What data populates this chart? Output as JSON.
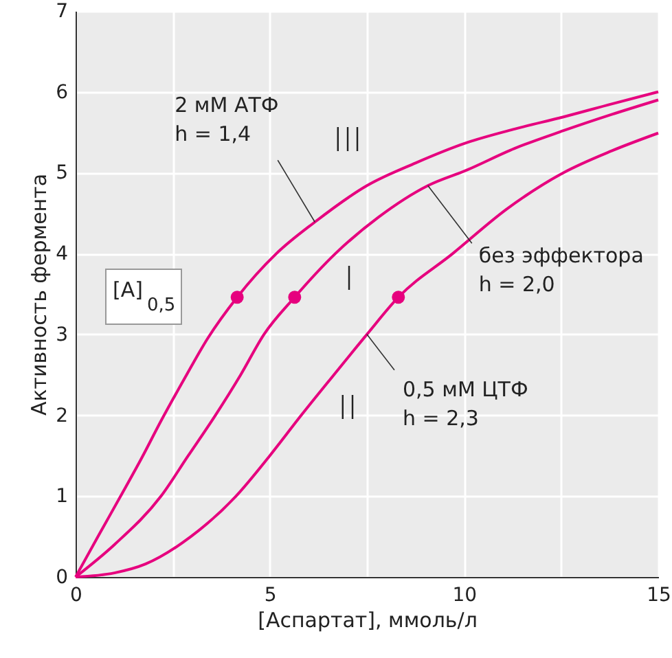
{
  "chart_data": {
    "type": "line",
    "xlabel": "[Аспартат], ммоль/л",
    "ylabel": "Активность фермента",
    "xlim": [
      0,
      15
    ],
    "ylim": [
      0,
      7
    ],
    "xticks": [
      0,
      {
        "value": 2.5,
        "label": null
      },
      5,
      {
        "value": 7.5,
        "label": null
      },
      10,
      {
        "value": 12.5,
        "label": null
      },
      15
    ],
    "yticks": [
      0,
      1,
      2,
      3,
      4,
      5,
      6,
      7
    ],
    "grid": true,
    "line_style": "solid",
    "series": [
      {
        "color": "#e6007e",
        "x": [
          0,
          0.6,
          1.16,
          1.7,
          2.2,
          2.8,
          3.4,
          4.16,
          5.17,
          6.16,
          7.5,
          8.75,
          10.06,
          11.3,
          12.56,
          13.8,
          15
        ],
        "values": [
          0,
          0.52,
          1,
          1.47,
          1.93,
          2.45,
          2.95,
          3.46,
          4,
          4.39,
          4.84,
          5.12,
          5.37,
          5.54,
          5.69,
          5.85,
          6.0
        ]
      },
      {
        "color": "#e6007e",
        "x": [
          0,
          1,
          2.2,
          2.9,
          3.6,
          4.25,
          4.85,
          5.64,
          6.69,
          7.8,
          9.07,
          10.06,
          11.3,
          12.56,
          13.8,
          15
        ],
        "values": [
          0,
          0.4,
          1,
          1.5,
          2,
          2.5,
          3,
          3.46,
          4,
          4.45,
          4.84,
          5.03,
          5.3,
          5.52,
          5.72,
          5.9
        ]
      },
      {
        "color": "#e6007e",
        "x": [
          0,
          1,
          1.8,
          2.97,
          4.13,
          5,
          5.81,
          6.65,
          7.5,
          8.31,
          9.71,
          11.1,
          12.56,
          13.8,
          15
        ],
        "values": [
          0,
          0.05,
          0.16,
          0.5,
          1,
          1.5,
          2,
          2.5,
          3,
          3.46,
          4,
          4.55,
          5.0,
          5.27,
          5.49
        ]
      },
      {
        "type": "scatter",
        "color": "#e6007e",
        "x": [
          4.16,
          5.64,
          8.31
        ],
        "values": [
          3.46,
          3.46,
          3.46
        ]
      }
    ],
    "annotations": [
      {
        "text": "2 мМ АТФ\nh = 1,4",
        "x": 6.16,
        "y": 4.39
      },
      {
        "text": "без эффектора\nh = 2,0",
        "x": 9.07,
        "y": 4.84
      },
      {
        "text": "0,5 мМ ЦТФ\nh = 2,3",
        "x": 7.5,
        "y": 3.0
      },
      "[A]$_{0,5}$",
      "III",
      "I",
      "II"
    ]
  }
}
